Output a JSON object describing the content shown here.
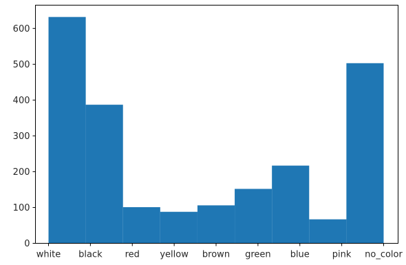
{
  "chart_data": {
    "type": "bar",
    "categories": [
      "white",
      "black",
      "red",
      "yellow",
      "brown",
      "green",
      "blue",
      "pink",
      "no_color"
    ],
    "values": [
      632,
      387,
      101,
      88,
      106,
      152,
      217,
      67,
      503
    ],
    "title": "",
    "xlabel": "",
    "ylabel": "",
    "ylim": [
      0,
      665
    ],
    "yticks": [
      0,
      100,
      200,
      300,
      400,
      500,
      600
    ],
    "ytick_labels": [
      "0",
      "100",
      "200",
      "300",
      "400",
      "500",
      "600"
    ],
    "grid": false,
    "legend": "none",
    "bar_color": "#1f77b4"
  }
}
